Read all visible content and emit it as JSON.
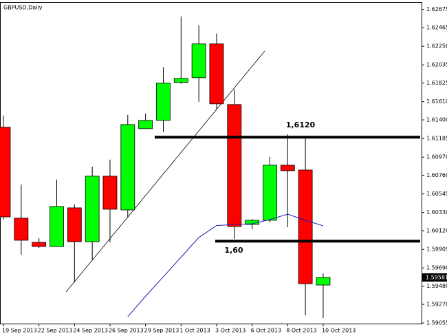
{
  "chart_data": {
    "type": "candlestick",
    "title": "GBPUSD,Daily",
    "categories": [
      "19 Sep 2013",
      null,
      "22 Sep 2013",
      null,
      "24 Sep 2013",
      null,
      "26 Sep 2013",
      null,
      "29 Sep 2013",
      null,
      "1 Oct 2013",
      null,
      "3 Oct 2013",
      null,
      "6 Oct 2013",
      null,
      "8 Oct 2013",
      null,
      "10 Oct 2013"
    ],
    "open": [
      1.61315,
      1.60265,
      1.59986,
      1.59938,
      1.60384,
      1.59994,
      1.6075,
      1.6036,
      1.61299,
      1.61394,
      1.61832,
      1.61887,
      1.62277,
      1.61577,
      1.60193,
      1.60241,
      1.60877,
      1.60821,
      1.59493
    ],
    "high": [
      1.6145,
      1.60655,
      1.60034,
      1.6071,
      1.60424,
      1.60861,
      1.60941,
      1.61458,
      1.61474,
      1.62007,
      1.62595,
      1.62492,
      1.62397,
      1.61752,
      1.60257,
      1.60973,
      1.61235,
      1.61187,
      1.59628
    ],
    "low": [
      1.6025,
      1.59843,
      1.59922,
      1.59938,
      1.59525,
      1.59779,
      1.59986,
      1.60272,
      1.61299,
      1.61259,
      1.61816,
      1.61609,
      1.61529,
      1.60026,
      1.60137,
      1.60217,
      1.60161,
      1.59143,
      1.59111
    ],
    "close": [
      1.6028,
      1.6001,
      1.59938,
      1.604,
      1.59994,
      1.6075,
      1.60368,
      1.61346,
      1.61394,
      1.61824,
      1.61879,
      1.62277,
      1.61585,
      1.60169,
      1.60241,
      1.60877,
      1.60813,
      1.59509,
      1.59581
    ],
    "up_color": "#00ff00",
    "down_color": "#ff0000",
    "ma_values": [
      null,
      null,
      null,
      null,
      null,
      null,
      null,
      1.59127,
      1.59364,
      1.59588,
      1.59815,
      1.60042,
      1.6018,
      1.60193,
      1.60201,
      1.60249,
      1.60312,
      1.6024,
      1.60177
    ],
    "ma_color": "#1c1cb4",
    "ylim": [
      1.5904,
      1.6276
    ],
    "yticks": [
      1.62675,
      1.62465,
      {
        "value": 1.6225,
        "label": "1.62250"
      },
      1.62035,
      1.61825,
      {
        "value": 1.6161,
        "label": "1.61610"
      },
      {
        "value": 1.614,
        "label": "1.61400"
      },
      1.61185,
      {
        "value": 1.6097,
        "label": "1.60970"
      },
      {
        "value": 1.6076,
        "label": "1.60760"
      },
      1.60545,
      {
        "value": 1.6033,
        "label": "1.60330"
      },
      {
        "value": 1.6012,
        "label": "1.60120"
      },
      1.59905,
      {
        "value": 1.5969,
        "label": "1.59690"
      },
      {
        "value": 1.5948,
        "label": "1.59480"
      },
      {
        "value": 1.5927,
        "label": "1.59270"
      },
      1.59055
    ],
    "last_price": 1.59581,
    "levels": [
      {
        "value": 1.612,
        "label": "1,6120"
      },
      {
        "value": 1.6,
        "label": "1,60"
      }
    ],
    "grid": false
  }
}
